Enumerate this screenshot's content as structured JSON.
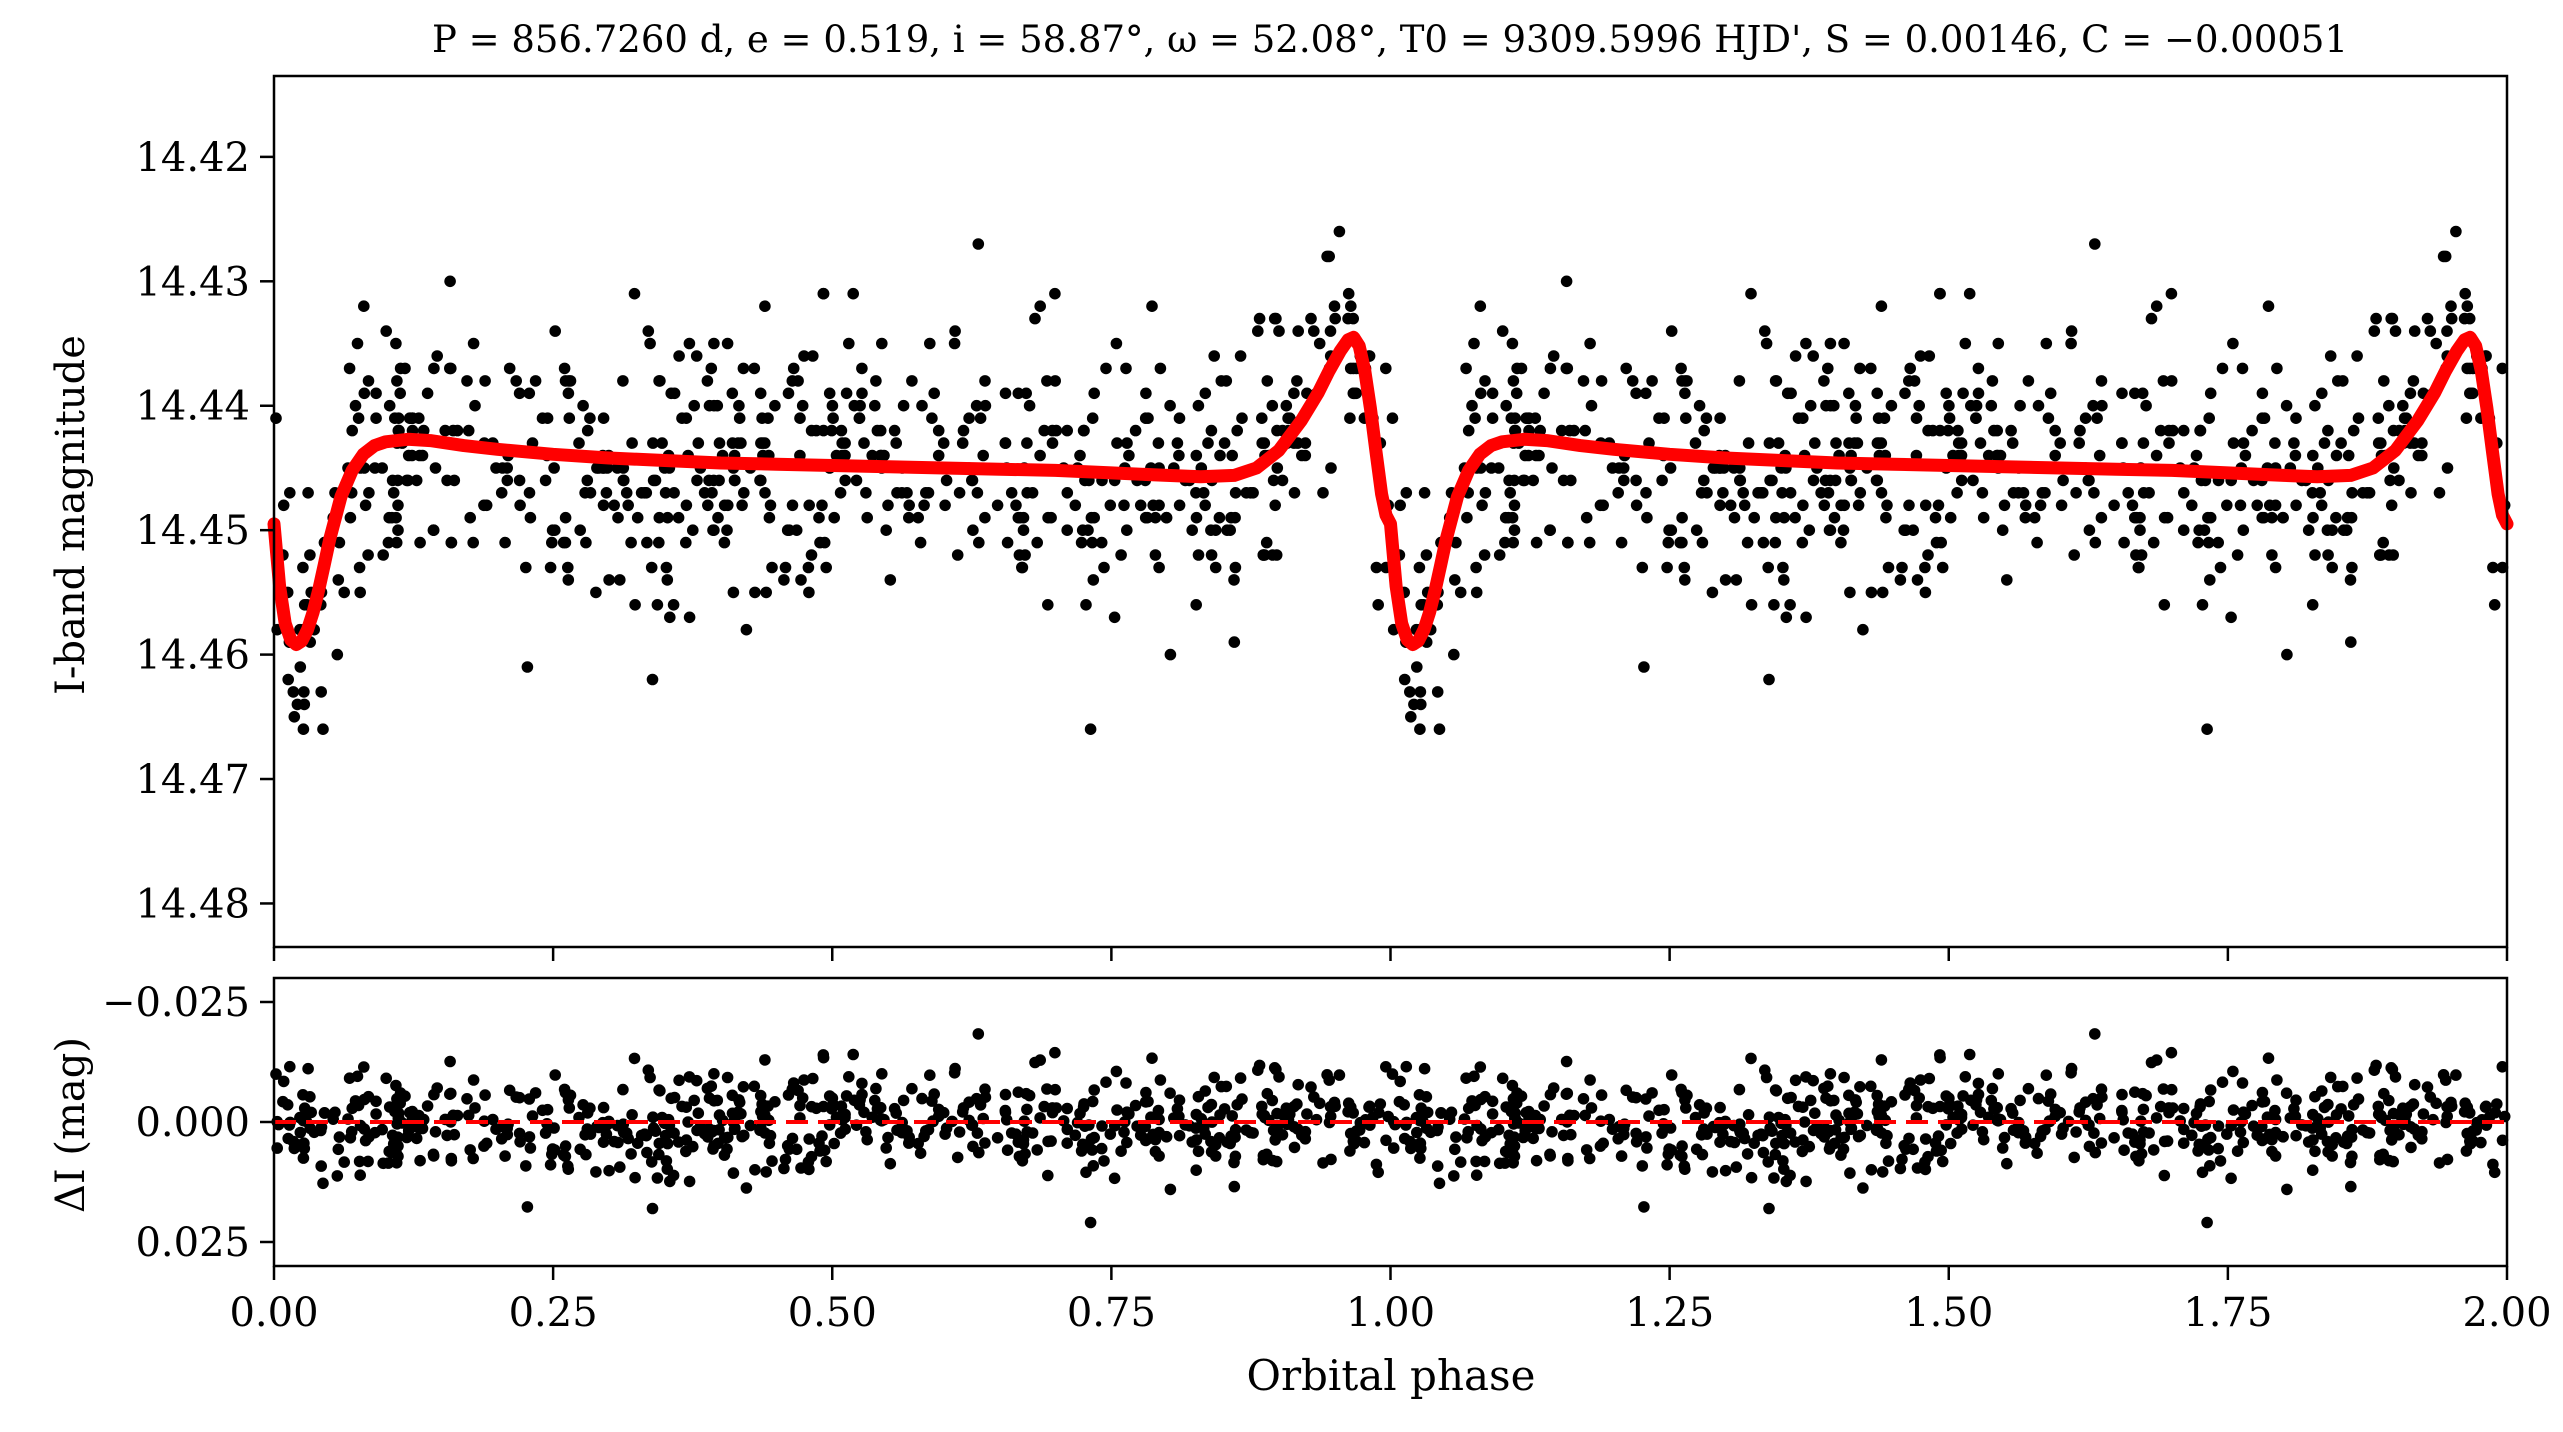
{
  "chart_data": [
    {
      "type": "scatter",
      "panel": "light curve",
      "title": "P = 856.7260 d, e = 0.519, i = 58.87°, ω = 52.08°, T0 = 9309.5996 HJD', S = 0.00146, C = −0.00051",
      "ylabel": "I-band magnitude",
      "xlabel": "",
      "xlim": [
        0.0,
        2.0
      ],
      "ylim": [
        14.4135,
        14.4835
      ],
      "y_inverted": true,
      "ytick_labels": [
        "14.42",
        "14.43",
        "14.44",
        "14.45",
        "14.46",
        "14.47",
        "14.48"
      ],
      "yticks": [
        14.42,
        14.43,
        14.44,
        14.45,
        14.46,
        14.47,
        14.48
      ],
      "grid": false,
      "series": [
        {
          "kind": "points",
          "color": "#000000",
          "note_points": "approximately 1300 observations folded over two cycles; scatter about the model with sigma near 0.005 mag",
          "x": [
            0.0,
            0.01,
            0.02,
            0.03,
            0.04,
            0.05,
            0.07,
            0.1,
            0.13,
            0.15,
            0.2,
            0.25,
            0.3,
            0.35,
            0.4,
            0.45,
            0.5,
            0.55,
            0.6,
            0.65,
            0.7,
            0.75,
            0.8,
            0.85,
            0.9,
            0.93,
            0.95,
            0.96,
            0.97,
            0.98,
            1.0
          ],
          "y": [
            14.449,
            14.457,
            14.459,
            14.458,
            14.454,
            14.449,
            14.444,
            14.442,
            14.443,
            14.443,
            14.443,
            14.444,
            14.444,
            14.444,
            14.445,
            14.445,
            14.445,
            14.445,
            14.445,
            14.445,
            14.445,
            14.446,
            14.446,
            14.446,
            14.444,
            14.44,
            14.436,
            14.435,
            14.437,
            14.444,
            14.449
          ]
        },
        {
          "kind": "line",
          "color": "#ff0000",
          "x": [
            0.0,
            0.005,
            0.01,
            0.015,
            0.02,
            0.025,
            0.03,
            0.035,
            0.04,
            0.045,
            0.05,
            0.06,
            0.07,
            0.08,
            0.09,
            0.1,
            0.12,
            0.14,
            0.17,
            0.2,
            0.25,
            0.3,
            0.35,
            0.4,
            0.45,
            0.5,
            0.55,
            0.6,
            0.65,
            0.7,
            0.75,
            0.8,
            0.83,
            0.86,
            0.88,
            0.9,
            0.92,
            0.935,
            0.945,
            0.955,
            0.962,
            0.967,
            0.972,
            0.977,
            0.982,
            0.987,
            0.992,
            0.996,
            1.0
          ],
          "y": [
            14.4495,
            14.4545,
            14.4575,
            14.4588,
            14.4592,
            14.4589,
            14.458,
            14.4566,
            14.4548,
            14.4528,
            14.4507,
            14.4473,
            14.4452,
            14.4439,
            14.4432,
            14.4429,
            14.4427,
            14.4428,
            14.4432,
            14.4435,
            14.4439,
            14.4442,
            14.4444,
            14.4446,
            14.4447,
            14.4448,
            14.4449,
            14.445,
            14.4451,
            14.4452,
            14.4454,
            14.4456,
            14.4457,
            14.4456,
            14.445,
            14.4436,
            14.4412,
            14.439,
            14.4372,
            14.4356,
            14.4347,
            14.4345,
            14.4352,
            14.4372,
            14.4402,
            14.4437,
            14.4471,
            14.4488,
            14.4495
          ]
        }
      ]
    },
    {
      "type": "scatter",
      "panel": "residuals",
      "ylabel": "ΔI (mag)",
      "xlabel": "Orbital phase",
      "xlim": [
        0.0,
        2.0
      ],
      "ylim": [
        -0.03,
        0.03
      ],
      "y_inverted": true,
      "xticks": [
        0.0,
        0.25,
        0.5,
        0.75,
        1.0,
        1.25,
        1.5,
        1.75,
        2.0
      ],
      "xtick_labels": [
        "0.00",
        "0.25",
        "0.50",
        "0.75",
        "1.00",
        "1.25",
        "1.50",
        "1.75",
        "2.00"
      ],
      "yticks": [
        -0.025,
        0.0,
        0.025
      ],
      "ytick_labels": [
        "−0.025",
        "0.000",
        "0.025"
      ],
      "grid": false,
      "zero_line": {
        "y": 0.0,
        "color": "#ff0000",
        "style": "dashed"
      },
      "series": [
        {
          "kind": "points",
          "color": "#000000",
          "note_points": "residuals scattered about zero, roughly within ±0.02 mag"
        }
      ]
    }
  ]
}
